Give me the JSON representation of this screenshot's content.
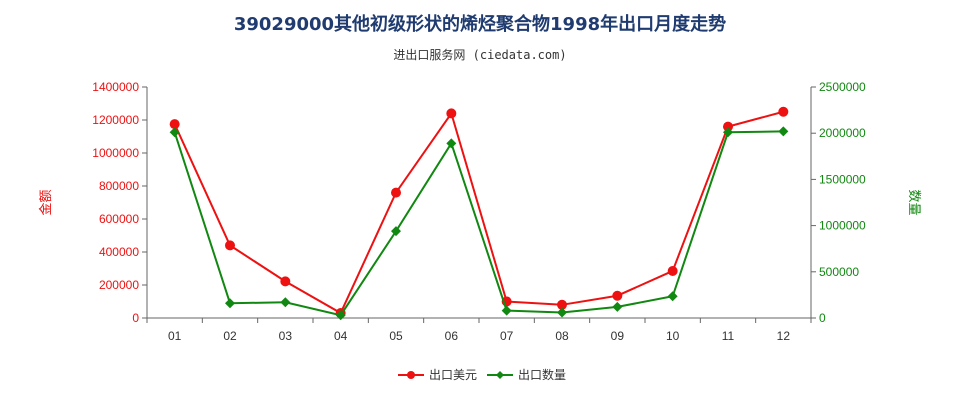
{
  "colors": {
    "amount": "#ee1111",
    "quantity": "#118811",
    "axis": "#666666",
    "grid": "#dddddd"
  },
  "chart_data": {
    "type": "line",
    "title": "39029000其他初级形状的烯烃聚合物1998年出口月度走势",
    "subtitle": "进出口服务网 (ciedata.com)",
    "categories": [
      "01",
      "02",
      "03",
      "04",
      "05",
      "06",
      "07",
      "08",
      "09",
      "10",
      "11",
      "12"
    ],
    "y_left": {
      "label": "金额",
      "ticks": [
        "0",
        "200000",
        "400000",
        "600000",
        "800000",
        "1000000",
        "1200000",
        "1400000"
      ],
      "range": [
        0,
        1400000
      ]
    },
    "y_right": {
      "label": "数量",
      "ticks": [
        "0",
        "500000",
        "1000000",
        "1500000",
        "2000000",
        "2500000"
      ],
      "range": [
        0,
        2500000
      ]
    },
    "series": [
      {
        "name": "出口美元",
        "axis": "left",
        "marker": "circle",
        "values": [
          1175000,
          440000,
          222000,
          30000,
          760000,
          1240000,
          100000,
          80000,
          135000,
          285000,
          1160000,
          1250000
        ]
      },
      {
        "name": "出口数量",
        "axis": "right",
        "marker": "diamond",
        "values": [
          2010000,
          160000,
          170000,
          30000,
          940000,
          1890000,
          80000,
          60000,
          120000,
          235000,
          2010000,
          2020000
        ]
      }
    ],
    "grid": false,
    "legend_position": "bottom"
  }
}
